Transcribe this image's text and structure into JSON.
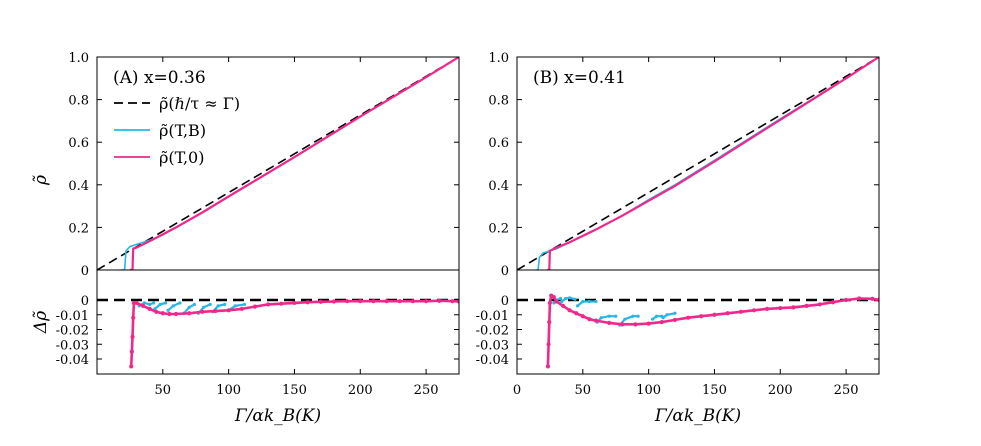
{
  "chart_data": [
    {
      "type": "line",
      "panel": "A",
      "title": "(A) x=0.36",
      "xlabel": "Γ/αk_B(K)",
      "ylabel_top": "ρ̃",
      "ylabel_bottom": "Δρ̃",
      "xlim": [
        0,
        275
      ],
      "xticks": [
        50,
        100,
        150,
        200,
        250
      ],
      "top": {
        "ylim": [
          0,
          1.0
        ],
        "yticks": [
          0,
          0.2,
          0.4,
          0.6,
          0.8,
          1.0
        ],
        "ytick_labels": [
          "0",
          "0.2",
          "0.4",
          "0.6",
          "0.8",
          "1.0"
        ],
        "legend": [
          "ρ̃(ℏ/τ ≈ Γ)",
          "ρ̃(T,B)",
          "ρ̃(T,0)"
        ],
        "series": [
          {
            "name": "ρ̃(ℏ/τ ≈ Γ)",
            "color": "#000000",
            "style": "dashed",
            "x": [
              0,
              275
            ],
            "y": [
              0.0,
              1.0
            ]
          },
          {
            "name": "ρ̃(T,B)",
            "color": "#29B6E6",
            "style": "solid",
            "x": [
              18,
              21,
              22,
              25,
              30,
              40,
              50,
              60,
              80,
              100,
              150,
              200,
              250,
              275
            ],
            "y": [
              0.0,
              0.0,
              0.09,
              0.11,
              0.12,
              0.14,
              0.165,
              0.2,
              0.27,
              0.345,
              0.53,
              0.72,
              0.905,
              1.0
            ]
          },
          {
            "name": "ρ̃(T,0)",
            "color": "#F0288C",
            "style": "solid",
            "x": [
              25,
              27,
              27.5,
              30,
              40,
              50,
              60,
              80,
              100,
              150,
              200,
              250,
              275
            ],
            "y": [
              0.0,
              0.0,
              0.1,
              0.105,
              0.135,
              0.167,
              0.2,
              0.27,
              0.345,
              0.53,
              0.72,
              0.905,
              1.0
            ]
          }
        ]
      },
      "bottom": {
        "ylim": [
          -0.05,
          0.005
        ],
        "yticks": [
          0,
          -0.01,
          -0.02,
          -0.03,
          -0.04
        ],
        "ytick_labels": [
          "0",
          "-0.01",
          "-0.02",
          "-0.03",
          "-0.04"
        ],
        "series": [
          {
            "name": "zero",
            "color": "#000000",
            "style": "dashed",
            "x": [
              0,
              275
            ],
            "y": [
              0,
              0
            ]
          },
          {
            "name": "Δρ̃(T,B)",
            "color": "#29B6E6",
            "style": "segments",
            "segments": [
              {
                "x": [
                  32,
                  36,
                  40,
                  43
                ],
                "y": [
                  -0.004,
                  -0.002,
                  -0.003,
                  -0.002
                ]
              },
              {
                "x": [
                  44,
                  48,
                  52
                ],
                "y": [
                  -0.006,
                  -0.003,
                  -0.002
                ]
              },
              {
                "x": [
                  54,
                  58,
                  63
                ],
                "y": [
                  -0.007,
                  -0.004,
                  -0.002
                ]
              },
              {
                "x": [
                  66,
                  70,
                  74
                ],
                "y": [
                  -0.009,
                  -0.005,
                  -0.003
                ]
              },
              {
                "x": [
                  77,
                  81,
                  86
                ],
                "y": [
                  -0.009,
                  -0.005,
                  -0.003
                ]
              },
              {
                "x": [
                  88,
                  92,
                  97
                ],
                "y": [
                  -0.008,
                  -0.004,
                  -0.003
                ]
              },
              {
                "x": [
                  100,
                  105,
                  112
                ],
                "y": [
                  -0.007,
                  -0.004,
                  -0.003
                ]
              }
            ]
          },
          {
            "name": "Δρ̃(T,0)",
            "color": "#F0288C",
            "style": "markers",
            "x": [
              26,
              26.5,
              27,
              27.5,
              28,
              30,
              35,
              40,
              45,
              50,
              55,
              60,
              70,
              80,
              90,
              100,
              110,
              120,
              130,
              140,
              150,
              160,
              170,
              180,
              190,
              200,
              210,
              220,
              230,
              240,
              250,
              260,
              270,
              275
            ],
            "y": [
              -0.045,
              -0.035,
              -0.025,
              -0.012,
              -0.002,
              -0.002,
              -0.004,
              -0.006,
              -0.008,
              -0.009,
              -0.0095,
              -0.0095,
              -0.009,
              -0.008,
              -0.0075,
              -0.007,
              -0.006,
              -0.0045,
              -0.003,
              -0.0025,
              -0.002,
              -0.0015,
              -0.0012,
              -0.001,
              -0.0008,
              -0.0008,
              -0.0008,
              -0.0008,
              -0.0008,
              -0.0008,
              -0.0008,
              -0.0005,
              -0.0008,
              -0.001
            ]
          }
        ]
      }
    },
    {
      "type": "line",
      "panel": "B",
      "title": "(B) x=0.41",
      "xlabel": "Γ/αk_B(K)",
      "xlim": [
        0,
        275
      ],
      "xticks": [
        0,
        50,
        100,
        150,
        200,
        250
      ],
      "top": {
        "ylim": [
          0,
          1.0
        ],
        "yticks": [
          0,
          0.2,
          0.4,
          0.6,
          0.8,
          1.0
        ],
        "ytick_labels": [
          "0",
          "0.2",
          "0.4",
          "0.6",
          "0.8",
          "1.0"
        ],
        "series": [
          {
            "name": "ρ̃(ℏ/τ ≈ Γ)",
            "color": "#000000",
            "style": "dashed",
            "x": [
              0,
              275
            ],
            "y": [
              0.0,
              1.0
            ]
          },
          {
            "name": "ρ̃(T,B)",
            "color": "#29B6E6",
            "style": "solid",
            "x": [
              14,
              16,
              17,
              20,
              30,
              40,
              50,
              60,
              80,
              100,
              120,
              150,
              200,
              250,
              275
            ],
            "y": [
              0.0,
              0.0,
              0.06,
              0.08,
              0.1,
              0.13,
              0.16,
              0.19,
              0.255,
              0.33,
              0.4,
              0.515,
              0.71,
              0.9,
              1.0
            ]
          },
          {
            "name": "ρ̃(T,0)",
            "color": "#F0288C",
            "style": "solid",
            "x": [
              23,
              24.5,
              25,
              30,
              40,
              50,
              60,
              80,
              100,
              120,
              150,
              200,
              250,
              275
            ],
            "y": [
              0.0,
              0.0,
              0.09,
              0.105,
              0.13,
              0.16,
              0.19,
              0.255,
              0.325,
              0.395,
              0.51,
              0.705,
              0.9,
              1.0
            ]
          }
        ]
      },
      "bottom": {
        "ylim": [
          -0.05,
          0.005
        ],
        "yticks": [
          0,
          -0.01,
          -0.02,
          -0.03,
          -0.04
        ],
        "ytick_labels": [
          "0",
          "-0.01",
          "-0.02",
          "-0.03",
          "-0.04"
        ],
        "series": [
          {
            "name": "zero",
            "color": "#000000",
            "style": "dashed",
            "x": [
              0,
              275
            ],
            "y": [
              0,
              0
            ]
          },
          {
            "name": "Δρ̃(T,B)",
            "color": "#29B6E6",
            "style": "segments",
            "segments": [
              {
                "x": [
                  28,
                  30,
                  33
                ],
                "y": [
                  -0.002,
                  0.0,
                  0.001
                ]
              },
              {
                "x": [
                  34,
                  37,
                  40,
                  44
                ],
                "y": [
                  -0.001,
                  0.001,
                  0.0015,
                  0.0005
                ]
              },
              {
                "x": [
                  46,
                  50,
                  55,
                  60
                ],
                "y": [
                  -0.004,
                  -0.001,
                  -0.001,
                  -0.001
                ]
              },
              {
                "x": [
                  61,
                  64,
                  70,
                  75
                ],
                "y": [
                  -0.015,
                  -0.012,
                  -0.011,
                  -0.011
                ]
              },
              {
                "x": [
                  78,
                  82,
                  88,
                  92
                ],
                "y": [
                  -0.017,
                  -0.013,
                  -0.011,
                  -0.011
                ]
              },
              {
                "x": [
                  103,
                  106,
                  110
                ],
                "y": [
                  -0.013,
                  -0.011,
                  -0.011
                ]
              },
              {
                "x": [
                  111,
                  114,
                  120
                ],
                "y": [
                  -0.012,
                  -0.01,
                  -0.009
                ]
              }
            ]
          },
          {
            "name": "Δρ̃(T,0)",
            "color": "#F0288C",
            "style": "markers",
            "x": [
              23.5,
              24,
              24.5,
              25,
              26,
              28,
              30,
              35,
              40,
              45,
              50,
              55,
              60,
              70,
              80,
              90,
              100,
              110,
              120,
              130,
              140,
              150,
              160,
              170,
              180,
              190,
              200,
              210,
              220,
              230,
              240,
              250,
              260,
              270,
              275
            ],
            "y": [
              -0.045,
              -0.03,
              -0.015,
              -0.002,
              0.003,
              0.002,
              -0.001,
              -0.004,
              -0.007,
              -0.009,
              -0.011,
              -0.013,
              -0.014,
              -0.0155,
              -0.0165,
              -0.0165,
              -0.016,
              -0.015,
              -0.0135,
              -0.012,
              -0.011,
              -0.01,
              -0.009,
              -0.008,
              -0.007,
              -0.006,
              -0.0055,
              -0.005,
              -0.004,
              -0.003,
              -0.0015,
              0.0,
              0.001,
              0.0008,
              0.0
            ]
          }
        ]
      }
    }
  ]
}
